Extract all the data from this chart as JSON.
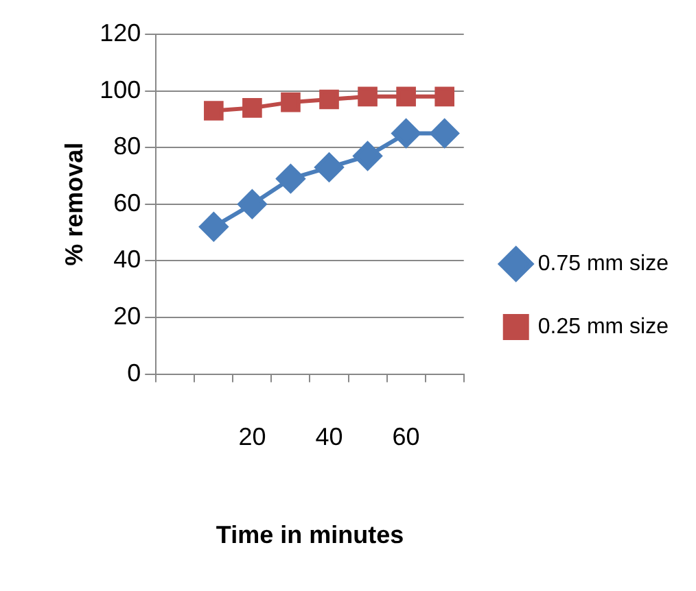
{
  "chart_data": {
    "type": "line",
    "xlabel": "Time in minutes",
    "ylabel": "% removal",
    "categories": [
      null,
      null,
      "20",
      null,
      "40",
      null,
      "60",
      null
    ],
    "series": [
      {
        "name": "0.75 mm size",
        "color": "#4a7ebb",
        "marker": "diamond",
        "values": [
          null,
          52,
          60,
          69,
          73,
          77,
          85,
          85
        ]
      },
      {
        "name": "0.25 mm size",
        "color": "#be4b48",
        "marker": "square",
        "values": [
          null,
          93,
          94,
          96,
          97,
          98,
          98,
          98
        ]
      }
    ],
    "ylim": [
      0,
      120
    ],
    "yticks": [
      0,
      20,
      40,
      60,
      80,
      100,
      120
    ],
    "grid": "y",
    "legend": "right"
  }
}
